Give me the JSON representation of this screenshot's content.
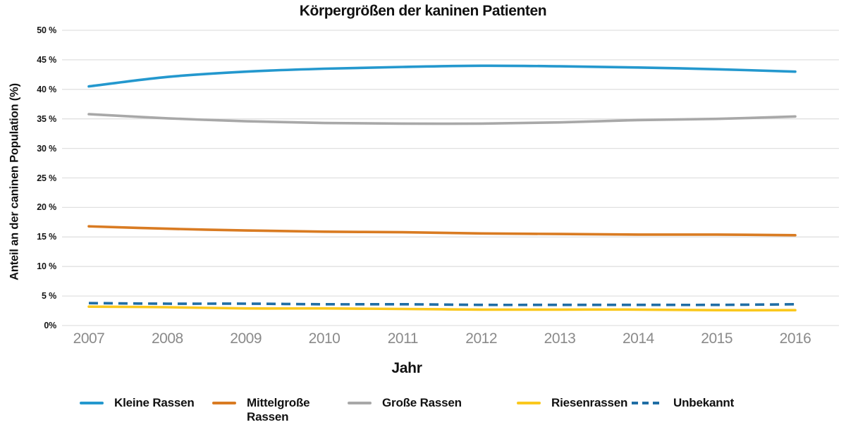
{
  "chart_data": {
    "type": "line",
    "title": "Körpergrößen der kaninen Patienten",
    "xlabel": "Jahr",
    "ylabel": "Anteil an der caninen Population (%)",
    "categories": [
      "2007",
      "2008",
      "2009",
      "2010",
      "2011",
      "2012",
      "2013",
      "2014",
      "2015",
      "2016"
    ],
    "ylim": [
      0,
      50
    ],
    "y_tick_step": 5,
    "y_tick_labels": [
      "50 %",
      "45 %",
      "40 %",
      "35 %",
      "30 %",
      "25 %",
      "20 %",
      "15 %",
      "10 %",
      "5 %",
      "0%"
    ],
    "grid": "horizontal",
    "legend_position": "bottom",
    "series": [
      {
        "name": "Kleine Rassen",
        "color": "#2498CE",
        "style": "solid",
        "values": [
          40.5,
          42.1,
          43.0,
          43.5,
          43.8,
          44.0,
          43.9,
          43.7,
          43.4,
          43.0
        ]
      },
      {
        "name": "Mittelgroße Rassen",
        "color": "#D97B22",
        "style": "solid",
        "values": [
          16.8,
          16.4,
          16.1,
          15.9,
          15.8,
          15.6,
          15.5,
          15.4,
          15.4,
          15.3
        ]
      },
      {
        "name": "Große Rassen",
        "color": "#A8A8A8",
        "style": "solid",
        "values": [
          35.8,
          35.1,
          34.6,
          34.3,
          34.2,
          34.2,
          34.4,
          34.8,
          35.0,
          35.4
        ]
      },
      {
        "name": "Riesenrassen",
        "color": "#FAC81E",
        "style": "solid",
        "values": [
          3.2,
          3.1,
          2.9,
          2.9,
          2.8,
          2.7,
          2.7,
          2.7,
          2.6,
          2.6
        ]
      },
      {
        "name": "Unbekannt",
        "color": "#206EA5",
        "style": "dashed",
        "values": [
          3.8,
          3.7,
          3.7,
          3.6,
          3.6,
          3.5,
          3.5,
          3.5,
          3.5,
          3.6
        ]
      }
    ]
  },
  "colors": {
    "gridline": "#E0E0E0",
    "x_tick_text": "#8A8A8A",
    "text": "#111111",
    "background": "#FFFFFF"
  }
}
